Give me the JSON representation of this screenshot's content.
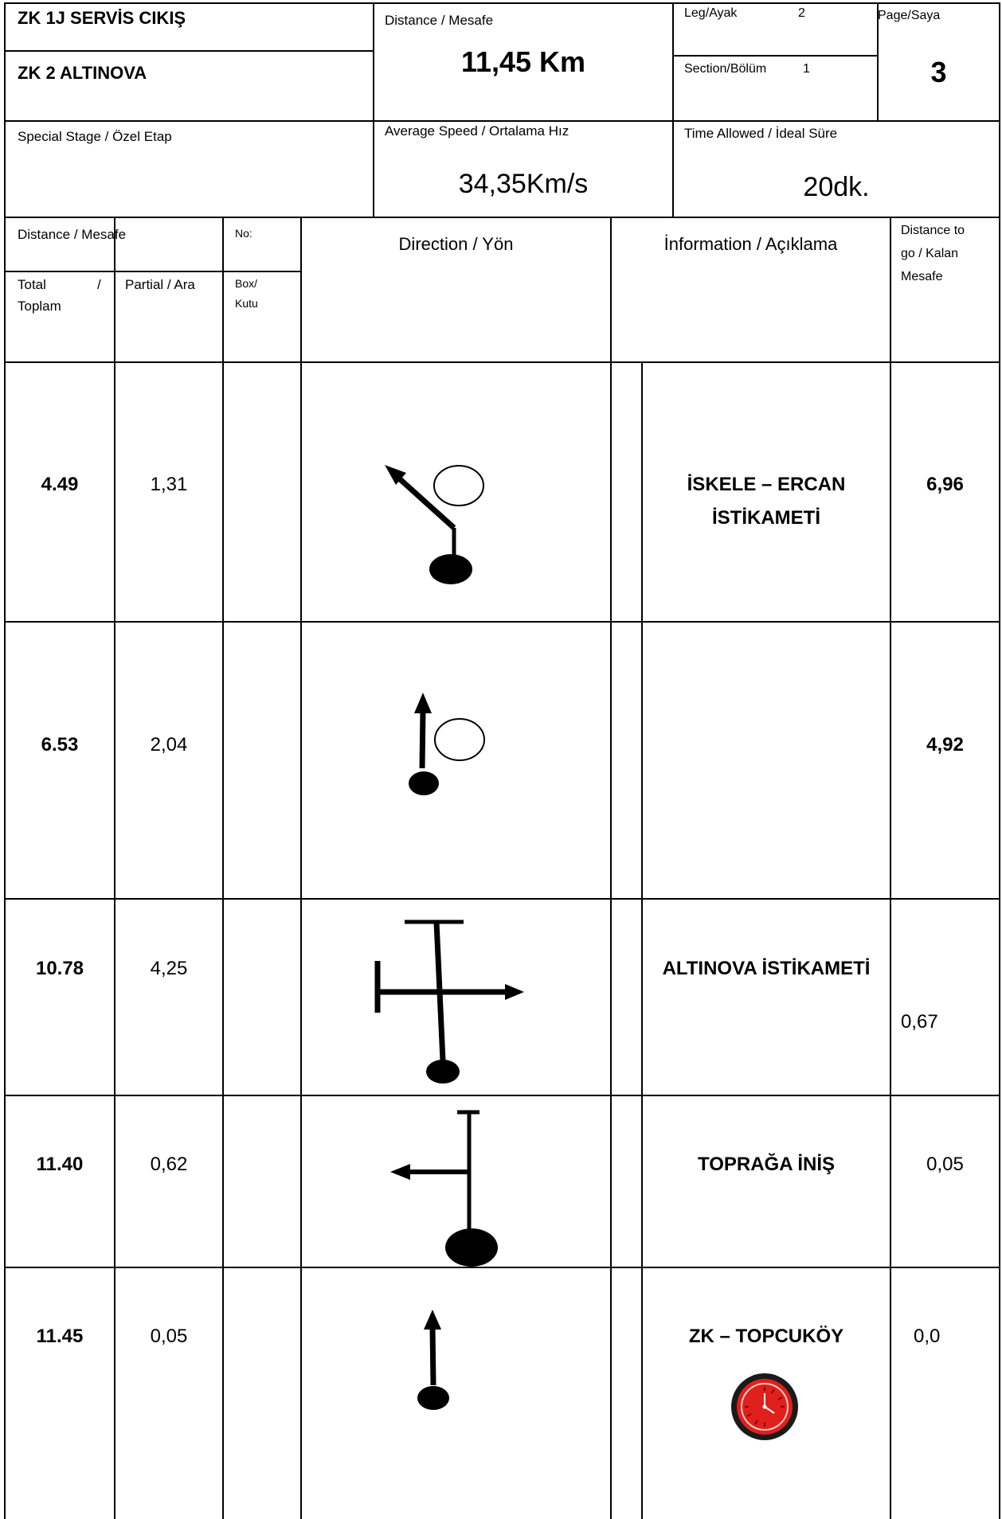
{
  "header": {
    "start_control": "ZK 1J SERVİS CIKIŞ",
    "end_control": "ZK 2 ALTINOVA",
    "distance_label": "Distance / Mesafe",
    "distance_value": "11,45 Km",
    "leg_label": "Leg/Ayak",
    "leg_value": "2",
    "section_label": "Section/Bölüm",
    "section_value": "1",
    "page_label": "Page/Saya",
    "page_value": "3",
    "special_stage_label": "Special Stage / Özel Etap",
    "avg_speed_label": "Average Speed /  Ortalama Hız",
    "avg_speed_value": "34,35Km/s",
    "time_allowed_label": "Time Allowed / İdeal Süre",
    "time_allowed_value": "20dk."
  },
  "columns": {
    "distance_group": "Distance / Mesafe",
    "total": "Total",
    "total_slash": "/",
    "total_tr": "Toplam",
    "partial": "Partial / Ara",
    "no": "No:",
    "box": "Box/",
    "box_tr": "Kutu",
    "direction": "Direction / Yön",
    "information": "İnformation / Açıklama",
    "to_go_1": "Distance to",
    "to_go_2": "go / Kalan",
    "to_go_3": "Mesafe"
  },
  "rows": [
    {
      "total": "4.49",
      "partial": "1,31",
      "info_1": "İSKELE – ERCAN",
      "info_2": "İSTİKAMETİ",
      "to_go": "6,96",
      "direction_icon": "roundabout-exit-left"
    },
    {
      "total": "6.53",
      "partial": "2,04",
      "info_1": "",
      "info_2": "",
      "to_go": "4,92",
      "direction_icon": "roundabout-straight"
    },
    {
      "total": "10.78",
      "partial": "4,25",
      "info_1": "ALTINOVA İSTİKAMETİ",
      "info_2": "",
      "to_go": "0,67",
      "direction_icon": "crossroads-right"
    },
    {
      "total": "11.40",
      "partial": "0,62",
      "info_1": "TOPRAĞA İNİŞ",
      "info_2": "",
      "to_go": "0,05",
      "direction_icon": "junction-left"
    },
    {
      "total": "11.45",
      "partial": "0,05",
      "info_1": "ZK – TOPCUKÖY",
      "info_2": "",
      "to_go": "0,0",
      "direction_icon": "straight-time-control"
    }
  ],
  "colors": {
    "line": "#000000",
    "clock_red": "#e0201b"
  }
}
